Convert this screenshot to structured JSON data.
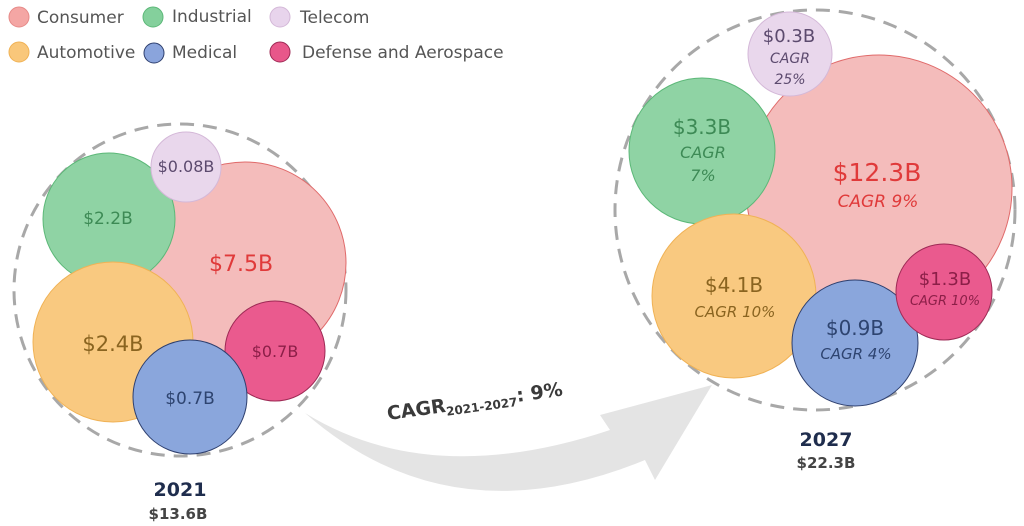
{
  "chart_data": {
    "type": "bubble",
    "legend": {
      "placement": "top-left",
      "entries": [
        {
          "name": "Consumer",
          "color": "#f4a6a4"
        },
        {
          "name": "Industrial",
          "color": "#84d09c"
        },
        {
          "name": "Telecom",
          "color": "#e8d4ec"
        },
        {
          "name": "Automotive",
          "color": "#f9c77a"
        },
        {
          "name": "Medical",
          "color": "#8aa4dc"
        },
        {
          "name": "Defense and Aerospace",
          "color": "#e8578a"
        }
      ]
    },
    "groups": [
      {
        "year": "2021",
        "total": "$13.6B",
        "segments": [
          {
            "name": "Consumer",
            "value": 7.5,
            "label": "$7.5B"
          },
          {
            "name": "Industrial",
            "value": 2.2,
            "label": "$2.2B"
          },
          {
            "name": "Telecom",
            "value": 0.08,
            "label": "$0.08B"
          },
          {
            "name": "Automotive",
            "value": 2.4,
            "label": "$2.4B"
          },
          {
            "name": "Medical",
            "value": 0.7,
            "label": "$0.7B"
          },
          {
            "name": "Defense and Aerospace",
            "value": 0.7,
            "label": "$0.7B"
          }
        ]
      },
      {
        "year": "2027",
        "total": "$22.3B",
        "segments": [
          {
            "name": "Consumer",
            "value": 12.3,
            "label": "$12.3B",
            "cagr": "CAGR 9%"
          },
          {
            "name": "Industrial",
            "value": 3.3,
            "label": "$3.3B",
            "cagr_line1": "CAGR",
            "cagr_line2": "7%"
          },
          {
            "name": "Telecom",
            "value": 0.3,
            "label": "$0.3B",
            "cagr_line1": "CAGR",
            "cagr_line2": "25%"
          },
          {
            "name": "Automotive",
            "value": 4.1,
            "label": "$4.1B",
            "cagr": "CAGR 10%"
          },
          {
            "name": "Medical",
            "value": 0.9,
            "label": "$0.9B",
            "cagr": "CAGR 4%"
          },
          {
            "name": "Defense and Aerospace",
            "value": 1.3,
            "label": "$1.3B",
            "cagr": "CAGR 10%"
          }
        ]
      }
    ],
    "overall_cagr": {
      "prefix": "CAGR",
      "subscript": "2021-2027",
      "suffix": ": 9%"
    },
    "colors": {
      "Consumer": {
        "fill": "#f4bcbb",
        "stroke": "#e06a6a",
        "text": "#e03a3a"
      },
      "Industrial": {
        "fill": "#8fd3a4",
        "stroke": "#5cb878",
        "text": "#3d8a55"
      },
      "Telecom": {
        "fill": "#e9d7ec",
        "stroke": "#d4b8d8",
        "text": "#5c4a6e"
      },
      "Automotive": {
        "fill": "#f9c980",
        "stroke": "#f0b255",
        "text": "#8a6420"
      },
      "Medical": {
        "fill": "#8aa6dc",
        "stroke": "#2e3f6e",
        "text": "#2e4470"
      },
      "Defense and Aerospace": {
        "fill": "#ea5a8e",
        "stroke": "#9e2a55",
        "text": "#8c1f48"
      }
    }
  }
}
